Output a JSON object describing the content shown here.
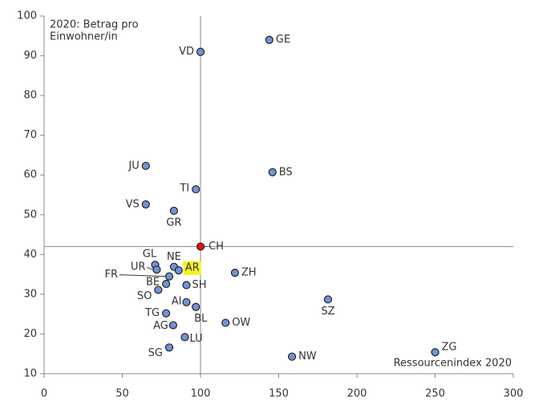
{
  "chart_data": {
    "type": "scatter",
    "annotation": [
      "2020: Betrag pro",
      "Einwohner/in"
    ],
    "x_label": "Ressourcenindex 2020",
    "categories": [
      "VD",
      "GE",
      "JU",
      "BS",
      "TI",
      "VS",
      "GR",
      "CH",
      "GL",
      "NE",
      "AR",
      "UR",
      "FR",
      "ZH",
      "BE",
      "SH",
      "SO",
      "SZ",
      "AI",
      "BL",
      "TG",
      "AG",
      "OW",
      "LU",
      "SG",
      "NW",
      "ZG"
    ],
    "x": [
      100,
      144,
      65,
      146,
      97,
      65,
      83,
      100,
      71,
      83,
      86,
      72,
      80,
      122,
      78,
      91,
      73,
      181.5,
      91,
      97,
      78,
      82.5,
      116,
      90,
      80,
      158.5,
      250
    ],
    "values": [
      91,
      94,
      62.3,
      60.7,
      56.4,
      52.6,
      51,
      42,
      37.4,
      36.9,
      36,
      36.2,
      34.5,
      35.4,
      32.6,
      32.3,
      31.1,
      28.7,
      28,
      26.8,
      25.2,
      22.2,
      22.8,
      19.2,
      16.6,
      14.3,
      15.4
    ],
    "color": "#7092d8",
    "reference": "CH",
    "reference_color": "#e8120c",
    "highlight": "AR",
    "highlight_color": "#f5f31a",
    "xlim": [
      0,
      300
    ],
    "xticks": [
      0,
      50,
      100,
      150,
      200,
      250,
      300
    ],
    "ylim": [
      10,
      100
    ],
    "yticks": [
      10,
      20,
      30,
      40,
      50,
      60,
      70,
      80,
      90,
      100
    ]
  }
}
